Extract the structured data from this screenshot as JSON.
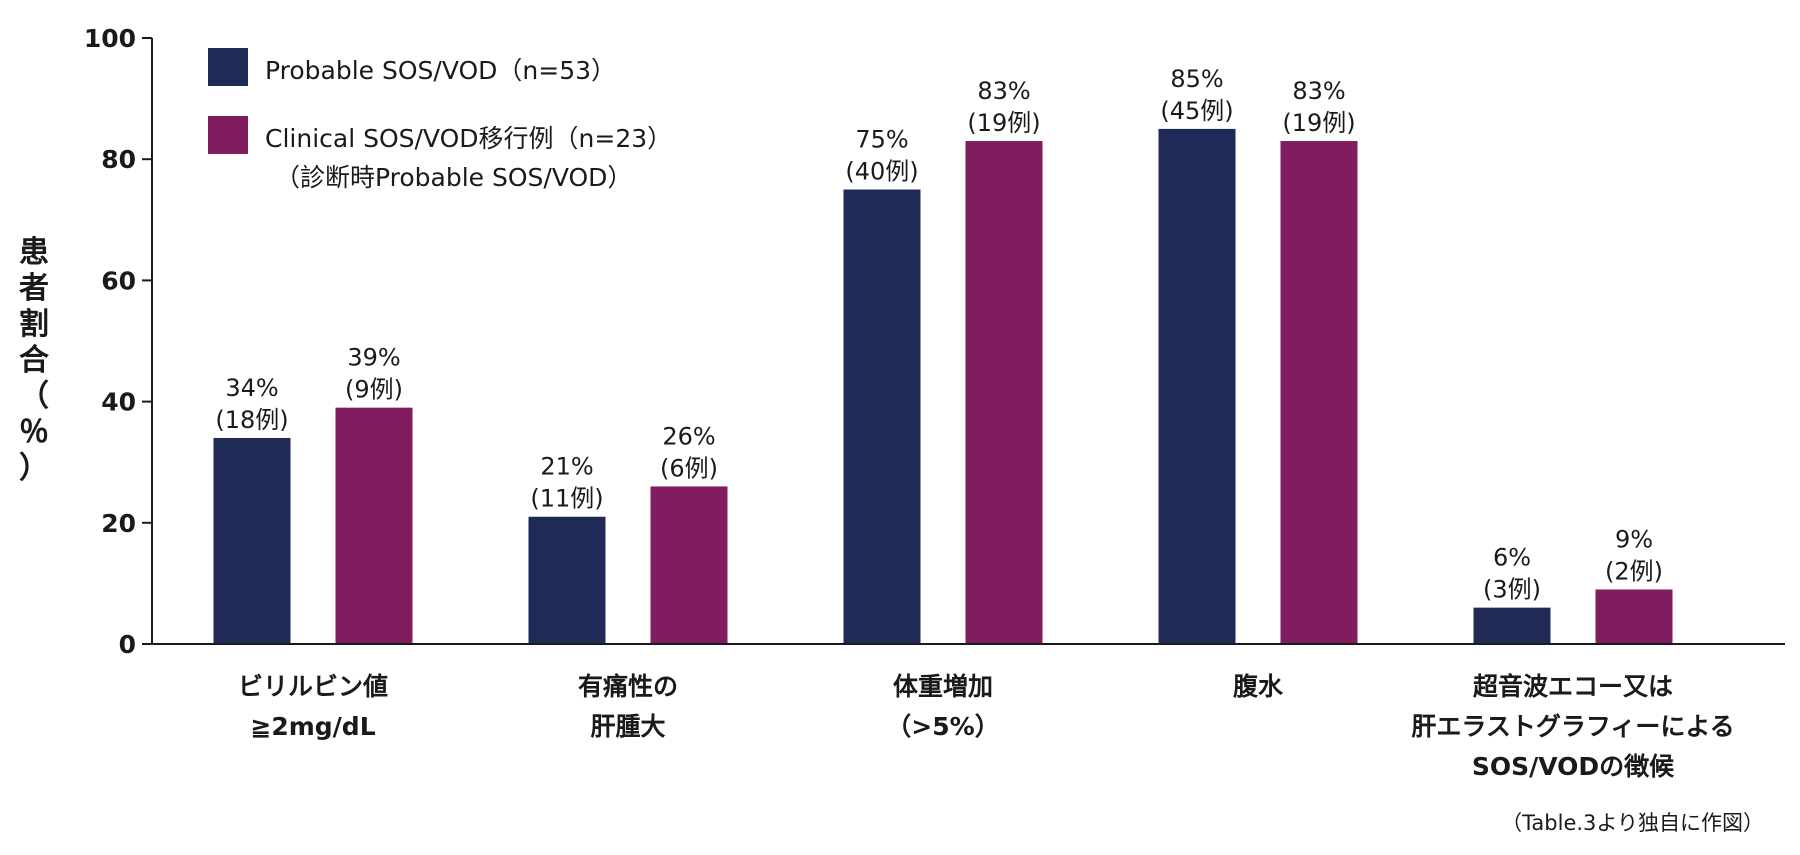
{
  "chart_data": {
    "type": "bar",
    "ylabel_chars": [
      "患",
      "者",
      "割",
      "合",
      "（",
      "％",
      "）"
    ],
    "ylim": [
      0,
      100
    ],
    "yticks": [
      0,
      20,
      40,
      60,
      80,
      100
    ],
    "categories": [
      [
        "ビリルビン値",
        "≧2mg/dL"
      ],
      [
        "有痛性の",
        "肝腫大"
      ],
      [
        "体重増加",
        "（>5%）"
      ],
      [
        "腹水"
      ],
      [
        "超音波エコー又は",
        "肝エラストグラフィーによる",
        "SOS/VODの徴候"
      ]
    ],
    "series": [
      {
        "name": "Probable SOS/VOD（n=53）",
        "color": "#1f2a56",
        "values": [
          34,
          21,
          75,
          85,
          6
        ],
        "labels": [
          [
            "34%",
            "(18例)"
          ],
          [
            "21%",
            "(11例)"
          ],
          [
            "75%",
            "(40例)"
          ],
          [
            "85%",
            "(45例)"
          ],
          [
            "6%",
            "(3例)"
          ]
        ]
      },
      {
        "name": "Clinical SOS/VOD移行例（n=23）",
        "name_sub": "（診断時Probable SOS/VOD）",
        "color": "#7f1d5f",
        "values": [
          39,
          26,
          83,
          83,
          9
        ],
        "labels": [
          [
            "39%",
            "(9例)"
          ],
          [
            "26%",
            "(6例)"
          ],
          [
            "83%",
            "(19例)"
          ],
          [
            "83%",
            "(19例)"
          ],
          [
            "9%",
            "(2例)"
          ]
        ]
      }
    ],
    "legend_position": "top-left",
    "grid": false
  },
  "source_note": "（Table.3より独自に作図）"
}
